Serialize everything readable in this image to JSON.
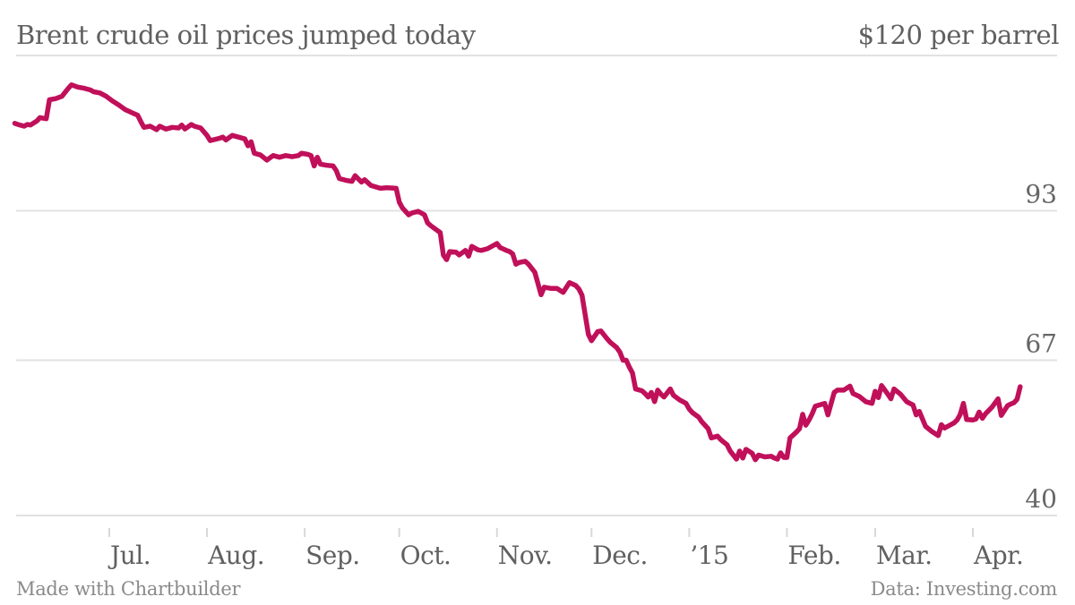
{
  "chart_data": {
    "type": "line",
    "title": "Brent crude oil prices jumped today",
    "ylabel": "$120 per barrel",
    "xlabel": "",
    "ylim": [
      40,
      120
    ],
    "yticks": [
      {
        "value": 120,
        "label": ""
      },
      {
        "value": 93,
        "label": "93"
      },
      {
        "value": 67,
        "label": "67"
      },
      {
        "value": 40,
        "label": "40"
      }
    ],
    "top_label": "$120 per barrel",
    "xlim": [
      "2014-06-01",
      "2015-04-14"
    ],
    "xticks": [
      {
        "date": "2014-07-01",
        "label": "Jul."
      },
      {
        "date": "2014-08-01",
        "label": "Aug."
      },
      {
        "date": "2014-09-01",
        "label": "Sep."
      },
      {
        "date": "2014-10-01",
        "label": "Oct."
      },
      {
        "date": "2014-11-01",
        "label": "Nov."
      },
      {
        "date": "2014-12-01",
        "label": "Dec."
      },
      {
        "date": "2015-01-01",
        "label": "’15"
      },
      {
        "date": "2015-02-01",
        "label": "Feb."
      },
      {
        "date": "2015-03-01",
        "label": "Mar."
      },
      {
        "date": "2015-04-01",
        "label": "Apr."
      }
    ],
    "grid": true,
    "line_color": "#c0105a",
    "series": [
      {
        "name": "Brent crude",
        "points": [
          [
            "2014-06-01",
            108.2
          ],
          [
            "2014-06-02",
            108.0
          ],
          [
            "2014-06-04",
            107.7
          ],
          [
            "2014-06-05",
            108.0
          ],
          [
            "2014-06-06",
            107.9
          ],
          [
            "2014-06-08",
            108.6
          ],
          [
            "2014-06-09",
            109.2
          ],
          [
            "2014-06-11",
            109.0
          ],
          [
            "2014-06-12",
            112.3
          ],
          [
            "2014-06-14",
            112.5
          ],
          [
            "2014-06-16",
            112.9
          ],
          [
            "2014-06-18",
            114.3
          ],
          [
            "2014-06-19",
            114.9
          ],
          [
            "2014-06-21",
            114.5
          ],
          [
            "2014-06-23",
            114.3
          ],
          [
            "2014-06-25",
            114.0
          ],
          [
            "2014-06-26",
            113.7
          ],
          [
            "2014-06-28",
            113.5
          ],
          [
            "2014-06-30",
            112.9
          ],
          [
            "2014-07-02",
            112.1
          ],
          [
            "2014-07-04",
            111.4
          ],
          [
            "2014-07-06",
            110.6
          ],
          [
            "2014-07-08",
            110.1
          ],
          [
            "2014-07-10",
            109.6
          ],
          [
            "2014-07-11",
            108.5
          ],
          [
            "2014-07-12",
            107.5
          ],
          [
            "2014-07-14",
            107.7
          ],
          [
            "2014-07-16",
            107.1
          ],
          [
            "2014-07-17",
            107.7
          ],
          [
            "2014-07-19",
            107.2
          ],
          [
            "2014-07-21",
            107.5
          ],
          [
            "2014-07-23",
            107.4
          ],
          [
            "2014-07-24",
            107.9
          ],
          [
            "2014-07-25",
            107.2
          ],
          [
            "2014-07-27",
            108.0
          ],
          [
            "2014-07-28",
            107.7
          ],
          [
            "2014-07-30",
            107.4
          ],
          [
            "2014-08-01",
            106.1
          ],
          [
            "2014-08-02",
            105.2
          ],
          [
            "2014-08-05",
            105.6
          ],
          [
            "2014-08-06",
            105.8
          ],
          [
            "2014-08-07",
            105.3
          ],
          [
            "2014-08-09",
            106.1
          ],
          [
            "2014-08-11",
            105.8
          ],
          [
            "2014-08-13",
            105.5
          ],
          [
            "2014-08-14",
            104.3
          ],
          [
            "2014-08-15",
            105.0
          ],
          [
            "2014-08-16",
            103.0
          ],
          [
            "2014-08-18",
            102.7
          ],
          [
            "2014-08-20",
            101.8
          ],
          [
            "2014-08-22",
            102.6
          ],
          [
            "2014-08-24",
            102.3
          ],
          [
            "2014-08-26",
            102.6
          ],
          [
            "2014-08-28",
            102.4
          ],
          [
            "2014-08-30",
            102.6
          ],
          [
            "2014-08-31",
            103.0
          ],
          [
            "2014-09-02",
            102.8
          ],
          [
            "2014-09-03",
            102.6
          ],
          [
            "2014-09-04",
            100.8
          ],
          [
            "2014-09-05",
            102.3
          ],
          [
            "2014-09-06",
            101.1
          ],
          [
            "2014-09-08",
            100.9
          ],
          [
            "2014-09-10",
            100.8
          ],
          [
            "2014-09-11",
            100.0
          ],
          [
            "2014-09-12",
            98.6
          ],
          [
            "2014-09-14",
            98.3
          ],
          [
            "2014-09-16",
            98.1
          ],
          [
            "2014-09-17",
            99.1
          ],
          [
            "2014-09-19",
            98.0
          ],
          [
            "2014-09-20",
            98.4
          ],
          [
            "2014-09-22",
            97.4
          ],
          [
            "2014-09-25",
            96.9
          ],
          [
            "2014-09-27",
            97.0
          ],
          [
            "2014-09-30",
            96.9
          ],
          [
            "2014-10-01",
            94.5
          ],
          [
            "2014-10-02",
            93.5
          ],
          [
            "2014-10-04",
            92.3
          ],
          [
            "2014-10-05",
            92.6
          ],
          [
            "2014-10-07",
            92.9
          ],
          [
            "2014-10-09",
            92.3
          ],
          [
            "2014-10-10",
            90.9
          ],
          [
            "2014-10-11",
            90.4
          ],
          [
            "2014-10-14",
            89.2
          ],
          [
            "2014-10-15",
            85.3
          ],
          [
            "2014-10-16",
            84.5
          ],
          [
            "2014-10-17",
            85.9
          ],
          [
            "2014-10-19",
            85.8
          ],
          [
            "2014-10-20",
            85.3
          ],
          [
            "2014-10-22",
            86.1
          ],
          [
            "2014-10-23",
            85.1
          ],
          [
            "2014-10-24",
            86.8
          ],
          [
            "2014-10-26",
            86.2
          ],
          [
            "2014-10-27",
            86.1
          ],
          [
            "2014-10-29",
            86.4
          ],
          [
            "2014-11-01",
            87.3
          ],
          [
            "2014-11-02",
            86.6
          ],
          [
            "2014-11-04",
            86.1
          ],
          [
            "2014-11-05",
            85.9
          ],
          [
            "2014-11-06",
            85.5
          ],
          [
            "2014-11-07",
            83.7
          ],
          [
            "2014-11-08",
            84.0
          ],
          [
            "2014-11-10",
            84.2
          ],
          [
            "2014-11-11",
            83.7
          ],
          [
            "2014-11-13",
            82.3
          ],
          [
            "2014-11-15",
            78.4
          ],
          [
            "2014-11-16",
            79.7
          ],
          [
            "2014-11-18",
            79.5
          ],
          [
            "2014-11-20",
            79.5
          ],
          [
            "2014-11-22",
            78.8
          ],
          [
            "2014-11-24",
            80.5
          ],
          [
            "2014-11-26",
            80.0
          ],
          [
            "2014-11-27",
            79.4
          ],
          [
            "2014-11-28",
            78.3
          ],
          [
            "2014-11-30",
            71.5
          ],
          [
            "2014-12-01",
            70.4
          ],
          [
            "2014-12-03",
            72.0
          ],
          [
            "2014-12-04",
            72.1
          ],
          [
            "2014-12-06",
            70.7
          ],
          [
            "2014-12-07",
            70.1
          ],
          [
            "2014-12-09",
            69.2
          ],
          [
            "2014-12-10",
            68.4
          ],
          [
            "2014-12-11",
            67.0
          ],
          [
            "2014-12-12",
            67.0
          ],
          [
            "2014-12-13",
            65.8
          ],
          [
            "2014-12-14",
            64.8
          ],
          [
            "2014-12-15",
            62.0
          ],
          [
            "2014-12-17",
            61.7
          ],
          [
            "2014-12-18",
            61.2
          ],
          [
            "2014-12-19",
            60.6
          ],
          [
            "2014-12-20",
            61.4
          ],
          [
            "2014-12-21",
            59.8
          ],
          [
            "2014-12-22",
            61.8
          ],
          [
            "2014-12-23",
            61.1
          ],
          [
            "2014-12-24",
            60.6
          ],
          [
            "2014-12-26",
            62.0
          ],
          [
            "2014-12-27",
            60.9
          ],
          [
            "2014-12-29",
            60.1
          ],
          [
            "2014-12-31",
            59.5
          ],
          [
            "2015-01-01",
            58.5
          ],
          [
            "2015-01-02",
            57.9
          ],
          [
            "2015-01-04",
            57.1
          ],
          [
            "2015-01-05",
            56.3
          ],
          [
            "2015-01-07",
            55.1
          ],
          [
            "2015-01-08",
            53.5
          ],
          [
            "2015-01-10",
            53.8
          ],
          [
            "2015-01-11",
            53.2
          ],
          [
            "2015-01-13",
            52.3
          ],
          [
            "2015-01-14",
            51.2
          ],
          [
            "2015-01-16",
            49.8
          ],
          [
            "2015-01-17",
            51.2
          ],
          [
            "2015-01-18",
            50.0
          ],
          [
            "2015-01-19",
            51.5
          ],
          [
            "2015-01-21",
            50.8
          ],
          [
            "2015-01-22",
            49.7
          ],
          [
            "2015-01-23",
            50.5
          ],
          [
            "2015-01-25",
            50.2
          ],
          [
            "2015-01-27",
            50.3
          ],
          [
            "2015-01-28",
            50.0
          ],
          [
            "2015-01-29",
            49.8
          ],
          [
            "2015-01-30",
            50.9
          ],
          [
            "2015-01-31",
            50.1
          ],
          [
            "2015-02-01",
            50.1
          ],
          [
            "2015-02-02",
            53.5
          ],
          [
            "2015-02-04",
            54.5
          ],
          [
            "2015-02-05",
            55.1
          ],
          [
            "2015-02-06",
            57.6
          ],
          [
            "2015-02-07",
            55.7
          ],
          [
            "2015-02-08",
            56.6
          ],
          [
            "2015-02-09",
            57.7
          ],
          [
            "2015-02-10",
            59.0
          ],
          [
            "2015-02-13",
            59.5
          ],
          [
            "2015-02-14",
            57.5
          ],
          [
            "2015-02-16",
            61.4
          ],
          [
            "2015-02-17",
            61.8
          ],
          [
            "2015-02-19",
            61.8
          ],
          [
            "2015-02-21",
            62.5
          ],
          [
            "2015-02-22",
            61.2
          ],
          [
            "2015-02-24",
            60.7
          ],
          [
            "2015-02-26",
            59.8
          ],
          [
            "2015-02-28",
            59.5
          ],
          [
            "2015-03-01",
            61.6
          ],
          [
            "2015-03-02",
            60.5
          ],
          [
            "2015-03-03",
            62.6
          ],
          [
            "2015-03-05",
            61.1
          ],
          [
            "2015-03-06",
            60.3
          ],
          [
            "2015-03-07",
            62.0
          ],
          [
            "2015-03-09",
            61.1
          ],
          [
            "2015-03-11",
            59.8
          ],
          [
            "2015-03-13",
            59.2
          ],
          [
            "2015-03-14",
            57.5
          ],
          [
            "2015-03-15",
            58.1
          ],
          [
            "2015-03-17",
            55.5
          ],
          [
            "2015-03-19",
            54.6
          ],
          [
            "2015-03-21",
            53.9
          ],
          [
            "2015-03-22",
            55.8
          ],
          [
            "2015-03-23",
            55.2
          ],
          [
            "2015-03-25",
            55.8
          ],
          [
            "2015-03-26",
            56.1
          ],
          [
            "2015-03-27",
            56.6
          ],
          [
            "2015-03-28",
            57.6
          ],
          [
            "2015-03-29",
            59.5
          ],
          [
            "2015-03-30",
            56.7
          ],
          [
            "2015-04-01",
            56.6
          ],
          [
            "2015-04-02",
            56.8
          ],
          [
            "2015-04-03",
            58.0
          ],
          [
            "2015-04-04",
            56.9
          ],
          [
            "2015-04-05",
            57.7
          ],
          [
            "2015-04-07",
            58.8
          ],
          [
            "2015-04-09",
            60.3
          ],
          [
            "2015-04-10",
            57.4
          ],
          [
            "2015-04-12",
            59.1
          ],
          [
            "2015-04-13",
            59.4
          ],
          [
            "2015-04-14",
            59.6
          ],
          [
            "2015-04-15",
            60.2
          ],
          [
            "2015-04-16",
            62.4
          ]
        ]
      }
    ]
  },
  "header": {
    "title": "Brent crude oil prices jumped today",
    "unit_label": "$120 per barrel"
  },
  "footer": {
    "credit": "Made with Chartbuilder",
    "source": "Data: Investing.com"
  }
}
